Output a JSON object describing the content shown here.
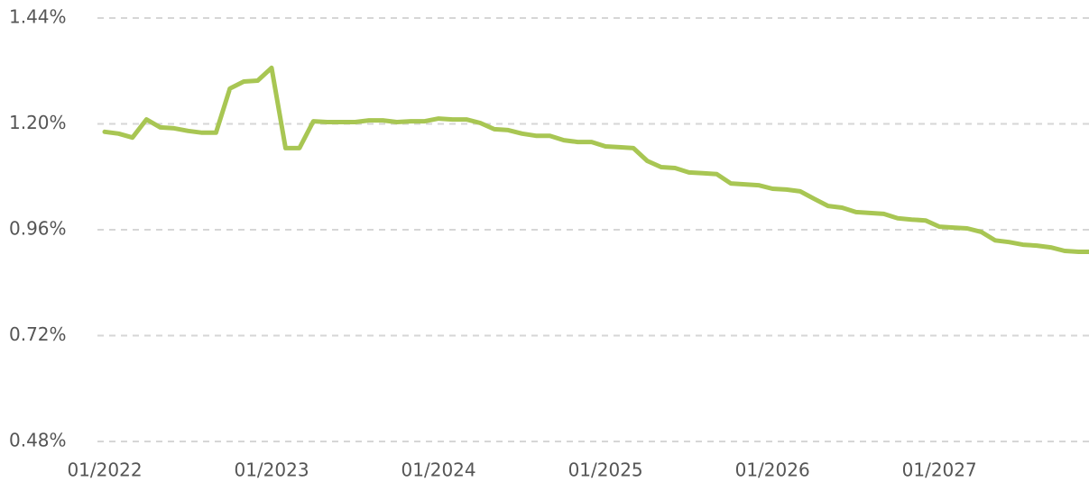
{
  "chart_data": {
    "type": "line",
    "x": [
      "01/2022",
      "02/2022",
      "03/2022",
      "04/2022",
      "05/2022",
      "06/2022",
      "07/2022",
      "08/2022",
      "09/2022",
      "10/2022",
      "11/2022",
      "12/2022",
      "01/2023",
      "02/2023",
      "03/2023",
      "04/2023",
      "05/2023",
      "06/2023",
      "07/2023",
      "08/2023",
      "09/2023",
      "10/2023",
      "11/2023",
      "12/2023",
      "01/2024",
      "02/2024",
      "03/2024",
      "04/2024",
      "05/2024",
      "06/2024",
      "07/2024",
      "08/2024",
      "09/2024",
      "10/2024",
      "11/2024",
      "12/2024",
      "01/2025",
      "02/2025",
      "03/2025",
      "04/2025",
      "05/2025",
      "06/2025",
      "07/2025",
      "08/2025",
      "09/2025",
      "10/2025",
      "11/2025",
      "12/2025",
      "01/2026",
      "02/2026",
      "03/2026",
      "04/2026",
      "05/2026",
      "06/2026",
      "07/2026",
      "08/2026",
      "09/2026",
      "10/2026",
      "11/2026",
      "12/2026",
      "01/2027",
      "02/2027",
      "03/2027",
      "04/2027",
      "05/2027",
      "06/2027",
      "07/2027",
      "08/2027",
      "09/2027",
      "10/2027",
      "11/2027",
      "12/2027"
    ],
    "series": [
      {
        "color": "#a8c653",
        "values": [
          1.182,
          1.178,
          1.169,
          1.21,
          1.192,
          1.19,
          1.184,
          1.18,
          1.18,
          1.28,
          1.296,
          1.298,
          1.327,
          1.145,
          1.145,
          1.206,
          1.204,
          1.204,
          1.204,
          1.208,
          1.208,
          1.204,
          1.206,
          1.206,
          1.212,
          1.21,
          1.21,
          1.202,
          1.188,
          1.186,
          1.178,
          1.173,
          1.173,
          1.163,
          1.159,
          1.159,
          1.149,
          1.147,
          1.145,
          1.116,
          1.102,
          1.1,
          1.09,
          1.088,
          1.086,
          1.065,
          1.063,
          1.061,
          1.053,
          1.051,
          1.047,
          1.03,
          1.014,
          1.01,
          1.0,
          0.998,
          0.996,
          0.986,
          0.983,
          0.981,
          0.967,
          0.965,
          0.963,
          0.955,
          0.936,
          0.932,
          0.926,
          0.924,
          0.92,
          0.912,
          0.91,
          0.91
        ]
      }
    ],
    "xticks": [
      "01/2022",
      "01/2023",
      "01/2024",
      "01/2025",
      "01/2026",
      "01/2027"
    ],
    "ylim": [
      0.48,
      1.44
    ],
    "yticks": [
      {
        "value": 0.48,
        "label": "0.48%"
      },
      {
        "value": 0.72,
        "label": "0.72%"
      },
      {
        "value": 0.96,
        "label": "0.96%"
      },
      {
        "value": 1.2,
        "label": "1.20%"
      },
      {
        "value": 1.44,
        "label": "1.44%"
      }
    ],
    "grid": true
  }
}
